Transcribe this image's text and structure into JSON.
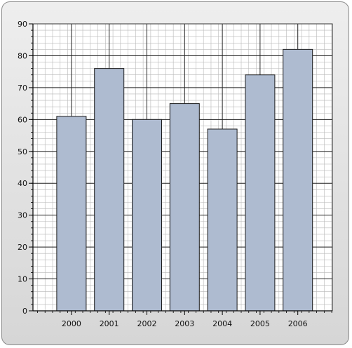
{
  "chart_data": {
    "type": "bar",
    "title": "",
    "xlabel": "",
    "ylabel": "",
    "categories": [
      "2000",
      "2001",
      "2002",
      "2003",
      "2004",
      "2005",
      "2006"
    ],
    "values": [
      61,
      76,
      60,
      65,
      57,
      74,
      82
    ],
    "ylim": [
      0,
      90
    ],
    "yticks": [
      "0",
      "10",
      "20",
      "30",
      "40",
      "50",
      "60",
      "70",
      "80",
      "90"
    ],
    "grid": true,
    "legend": "none",
    "colors": {
      "bar_fill": "#aebbd0",
      "bar_stroke": "#1a1a1a",
      "major_grid": "#222222",
      "minor_grid": "#b8b8b8",
      "plot_bg": "#ffffff"
    }
  }
}
